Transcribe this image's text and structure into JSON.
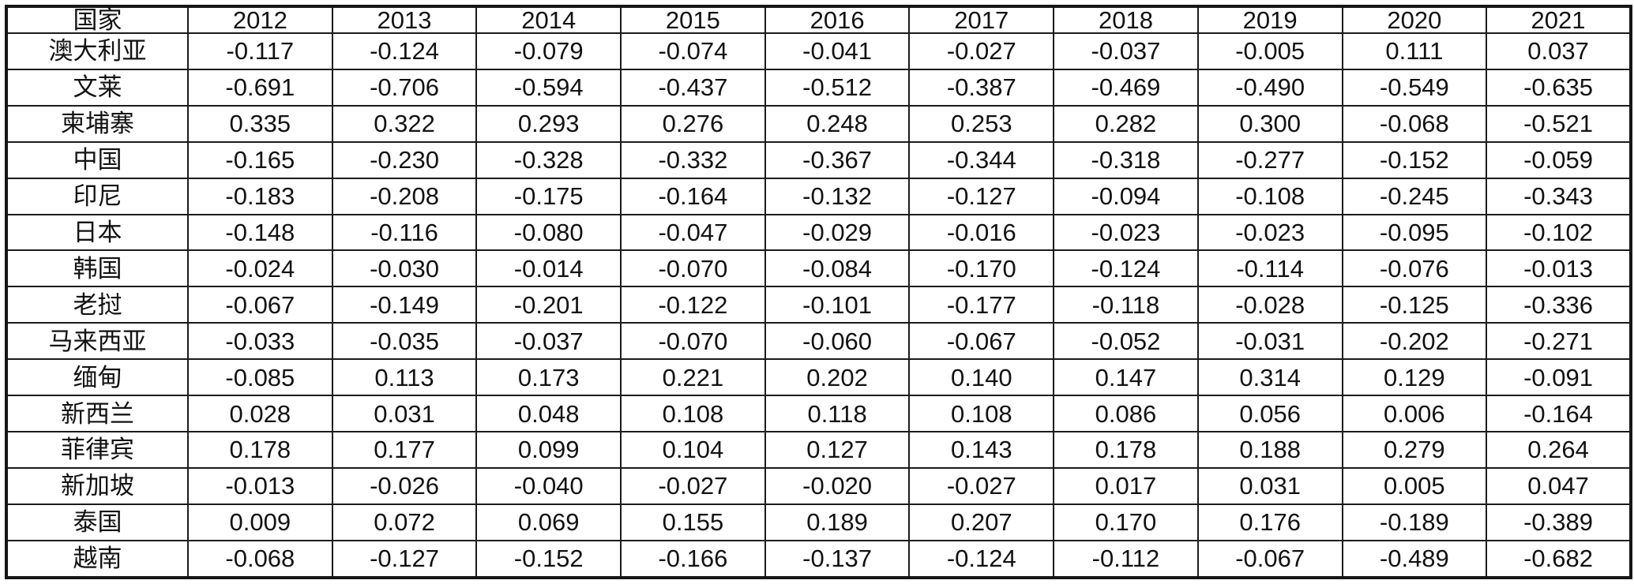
{
  "colors": {
    "background": "#ffffff",
    "border": "#1b1b1b",
    "text": "#121212"
  },
  "chart_data": {
    "type": "table",
    "title": "",
    "columns": [
      "国家",
      "2012",
      "2013",
      "2014",
      "2015",
      "2016",
      "2017",
      "2018",
      "2019",
      "2020",
      "2021"
    ],
    "rows": [
      [
        "澳大利亚",
        "-0.117",
        "-0.124",
        "-0.079",
        "-0.074",
        "-0.041",
        "-0.027",
        "-0.037",
        "-0.005",
        "0.111",
        "0.037"
      ],
      [
        "文莱",
        "-0.691",
        "-0.706",
        "-0.594",
        "-0.437",
        "-0.512",
        "-0.387",
        "-0.469",
        "-0.490",
        "-0.549",
        "-0.635"
      ],
      [
        "柬埔寨",
        "0.335",
        "0.322",
        "0.293",
        "0.276",
        "0.248",
        "0.253",
        "0.282",
        "0.300",
        "-0.068",
        "-0.521"
      ],
      [
        "中国",
        "-0.165",
        "-0.230",
        "-0.328",
        "-0.332",
        "-0.367",
        "-0.344",
        "-0.318",
        "-0.277",
        "-0.152",
        "-0.059"
      ],
      [
        "印尼",
        "-0.183",
        "-0.208",
        "-0.175",
        "-0.164",
        "-0.132",
        "-0.127",
        "-0.094",
        "-0.108",
        "-0.245",
        "-0.343"
      ],
      [
        "日本",
        "-0.148",
        "-0.116",
        "-0.080",
        "-0.047",
        "-0.029",
        "-0.016",
        "-0.023",
        "-0.023",
        "-0.095",
        "-0.102"
      ],
      [
        "韩国",
        "-0.024",
        "-0.030",
        "-0.014",
        "-0.070",
        "-0.084",
        "-0.170",
        "-0.124",
        "-0.114",
        "-0.076",
        "-0.013"
      ],
      [
        "老挝",
        "-0.067",
        "-0.149",
        "-0.201",
        "-0.122",
        "-0.101",
        "-0.177",
        "-0.118",
        "-0.028",
        "-0.125",
        "-0.336"
      ],
      [
        "马来西亚",
        "-0.033",
        "-0.035",
        "-0.037",
        "-0.070",
        "-0.060",
        "-0.067",
        "-0.052",
        "-0.031",
        "-0.202",
        "-0.271"
      ],
      [
        "缅甸",
        "-0.085",
        "0.113",
        "0.173",
        "0.221",
        "0.202",
        "0.140",
        "0.147",
        "0.314",
        "0.129",
        "-0.091"
      ],
      [
        "新西兰",
        "0.028",
        "0.031",
        "0.048",
        "0.108",
        "0.118",
        "0.108",
        "0.086",
        "0.056",
        "0.006",
        "-0.164"
      ],
      [
        "菲律宾",
        "0.178",
        "0.177",
        "0.099",
        "0.104",
        "0.127",
        "0.143",
        "0.178",
        "0.188",
        "0.279",
        "0.264"
      ],
      [
        "新加坡",
        "-0.013",
        "-0.026",
        "-0.040",
        "-0.027",
        "-0.020",
        "-0.027",
        "0.017",
        "0.031",
        "0.005",
        "0.047"
      ],
      [
        "泰国",
        "0.009",
        "0.072",
        "0.069",
        "0.155",
        "0.189",
        "0.207",
        "0.170",
        "0.176",
        "-0.189",
        "-0.389"
      ],
      [
        "越南",
        "-0.068",
        "-0.127",
        "-0.152",
        "-0.166",
        "-0.137",
        "-0.124",
        "-0.112",
        "-0.067",
        "-0.489",
        "-0.682"
      ]
    ]
  }
}
